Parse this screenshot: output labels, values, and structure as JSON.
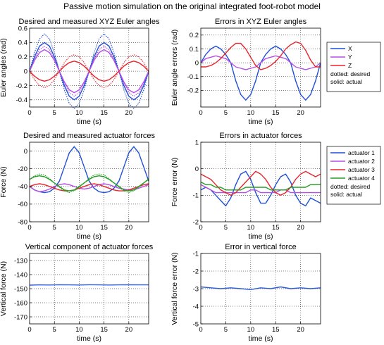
{
  "figure_title": "Passive motion simulation on the original integrated foot-robot model",
  "colors": {
    "X": "#1f4fd8",
    "Y": "#b44fe8",
    "Z": "#e8242c",
    "actuator4": "#23a023",
    "vertical": "#2b5cd6"
  },
  "legend_euler": {
    "entries": [
      {
        "label": "X",
        "color": "#1f4fd8"
      },
      {
        "label": "Y",
        "color": "#b44fe8"
      },
      {
        "label": "Z",
        "color": "#e8242c"
      }
    ],
    "note1": "dotted: desired",
    "note2": "solid: actual"
  },
  "legend_forces": {
    "entries": [
      {
        "label": "actuator 1",
        "color": "#1f4fd8"
      },
      {
        "label": "actuator 2",
        "color": "#b44fe8"
      },
      {
        "label": "actuator 3",
        "color": "#e8242c"
      },
      {
        "label": "actuator 4",
        "color": "#23a023"
      }
    ],
    "note1": "dotted: desired",
    "note2": "solid: actual"
  },
  "chart_data": [
    {
      "type": "line",
      "title": "Desired and measured XYZ Euler angles",
      "xlabel": "time (s)",
      "ylabel": "Euler angles (rad)",
      "xlim": [
        0,
        24
      ],
      "ylim": [
        -0.5,
        0.6
      ],
      "xticks": [
        0,
        5,
        10,
        15,
        20
      ],
      "yticks": [
        -0.4,
        -0.2,
        0,
        0.2,
        0.4,
        0.6
      ],
      "grid": true,
      "x": [
        0,
        1,
        2,
        3,
        4,
        5,
        6,
        7,
        8,
        9,
        10,
        11,
        12,
        13,
        14,
        15,
        16,
        17,
        18,
        19,
        20,
        21,
        22,
        23,
        24
      ],
      "series": [
        {
          "name": "X",
          "style": "solid",
          "color": "#1f4fd8",
          "values": [
            0,
            0.2,
            0.35,
            0.4,
            0.35,
            0.2,
            0,
            -0.2,
            -0.35,
            -0.4,
            -0.35,
            -0.2,
            0,
            0.2,
            0.35,
            0.4,
            0.35,
            0.2,
            0,
            -0.2,
            -0.35,
            -0.4,
            -0.35,
            -0.2,
            0
          ]
        },
        {
          "name": "X",
          "style": "dotted",
          "color": "#1f4fd8",
          "values": [
            0,
            0.26,
            0.45,
            0.52,
            0.45,
            0.26,
            0,
            -0.26,
            -0.45,
            -0.52,
            -0.45,
            -0.26,
            0,
            0.26,
            0.45,
            0.52,
            0.45,
            0.26,
            0,
            -0.26,
            -0.45,
            -0.52,
            -0.45,
            -0.26,
            0
          ]
        },
        {
          "name": "Y",
          "style": "solid",
          "color": "#b44fe8",
          "values": [
            0,
            0.15,
            0.26,
            0.3,
            0.26,
            0.15,
            0,
            -0.15,
            -0.26,
            -0.3,
            -0.26,
            -0.15,
            0,
            0.15,
            0.26,
            0.3,
            0.26,
            0.15,
            0,
            -0.15,
            -0.26,
            -0.3,
            -0.26,
            -0.15,
            0
          ]
        },
        {
          "name": "Y",
          "style": "dotted",
          "color": "#b44fe8",
          "values": [
            0,
            0.17,
            0.3,
            0.35,
            0.3,
            0.17,
            0,
            -0.17,
            -0.3,
            -0.35,
            -0.3,
            -0.17,
            0,
            0.17,
            0.3,
            0.35,
            0.3,
            0.17,
            0,
            -0.17,
            -0.3,
            -0.35,
            -0.3,
            -0.17,
            0
          ]
        },
        {
          "name": "Z",
          "style": "solid",
          "color": "#e8242c",
          "values": [
            0,
            -0.07,
            -0.12,
            -0.14,
            -0.12,
            -0.07,
            0,
            0.07,
            0.12,
            0.14,
            0.12,
            0.07,
            0,
            -0.07,
            -0.12,
            -0.14,
            -0.12,
            -0.07,
            0,
            0.07,
            0.12,
            0.14,
            0.12,
            0.07,
            0
          ]
        },
        {
          "name": "Z",
          "style": "dotted",
          "color": "#e8242c",
          "values": [
            0,
            -0.12,
            -0.2,
            -0.23,
            -0.2,
            -0.12,
            0,
            0.12,
            0.2,
            0.23,
            0.2,
            0.12,
            0,
            -0.12,
            -0.2,
            -0.23,
            -0.2,
            -0.12,
            0,
            0.12,
            0.2,
            0.23,
            0.2,
            0.12,
            0
          ]
        }
      ]
    },
    {
      "type": "line",
      "title": "Errors in XYZ Euler angles",
      "xlabel": "time (s)",
      "ylabel": "Euler angle errors (rad)",
      "xlim": [
        0,
        24
      ],
      "ylim": [
        -0.32,
        0.25
      ],
      "xticks": [
        0,
        5,
        10,
        15,
        20
      ],
      "yticks": [
        -0.2,
        -0.1,
        0,
        0.1,
        0.2
      ],
      "grid": true,
      "x": [
        0,
        1,
        2,
        3,
        4,
        5,
        6,
        7,
        8,
        9,
        10,
        11,
        12,
        13,
        14,
        15,
        16,
        17,
        18,
        19,
        20,
        21,
        22,
        23,
        24
      ],
      "series": [
        {
          "name": "X",
          "color": "#1f4fd8",
          "values": [
            0,
            0.06,
            0.1,
            0.12,
            0.1,
            0.06,
            0,
            -0.13,
            -0.23,
            -0.27,
            -0.23,
            -0.13,
            0,
            0.06,
            0.1,
            0.12,
            0.1,
            0.06,
            0,
            -0.13,
            -0.23,
            -0.27,
            -0.23,
            -0.13,
            0
          ]
        },
        {
          "name": "Y",
          "color": "#b44fe8",
          "values": [
            0,
            0.03,
            0.04,
            0.05,
            0.04,
            0.03,
            0,
            -0.03,
            -0.04,
            -0.05,
            -0.04,
            -0.03,
            0,
            0.03,
            0.04,
            0.05,
            0.04,
            0.03,
            0,
            -0.03,
            -0.04,
            -0.05,
            -0.04,
            -0.03,
            0
          ]
        },
        {
          "name": "Z",
          "color": "#e8242c",
          "values": [
            -0.03,
            -0.03,
            -0.02,
            0.0,
            0.03,
            0.07,
            0.11,
            0.14,
            0.14,
            0.1,
            0.04,
            -0.02,
            -0.05,
            -0.04,
            -0.02,
            0.01,
            0.05,
            0.1,
            0.13,
            0.15,
            0.14,
            0.09,
            0.02,
            -0.03,
            -0.03
          ]
        }
      ]
    },
    {
      "type": "line",
      "title": "Desired and measured actuator forces",
      "xlabel": "time (s)",
      "ylabel": "Force (N)",
      "xlim": [
        0,
        24
      ],
      "ylim": [
        -80,
        10
      ],
      "xticks": [
        0,
        5,
        10,
        15,
        20
      ],
      "yticks": [
        -80,
        -60,
        -40,
        -20,
        0
      ],
      "grid": true,
      "x": [
        0,
        1,
        2,
        3,
        4,
        5,
        6,
        7,
        8,
        9,
        10,
        11,
        12,
        13,
        14,
        15,
        16,
        17,
        18,
        19,
        20,
        21,
        22,
        23,
        24
      ],
      "series": [
        {
          "name": "actuator 1",
          "style": "solid",
          "color": "#1f4fd8",
          "values": [
            -40,
            -44,
            -46,
            -47,
            -46,
            -42,
            -34,
            -18,
            -2,
            5,
            -2,
            -18,
            -34,
            -42,
            -46,
            -47,
            -46,
            -42,
            -34,
            -18,
            -2,
            5,
            -2,
            -18,
            -34
          ]
        },
        {
          "name": "actuator 2",
          "style": "solid",
          "color": "#b44fe8",
          "values": [
            -40,
            -44,
            -46,
            -45,
            -43,
            -40,
            -38,
            -37,
            -38,
            -40,
            -42,
            -43,
            -42,
            -40,
            -38,
            -37,
            -38,
            -40,
            -42,
            -43,
            -44,
            -44,
            -42,
            -40,
            -38
          ]
        },
        {
          "name": "actuator 3",
          "style": "solid",
          "color": "#e8242c",
          "values": [
            -40,
            -38,
            -37,
            -38,
            -40,
            -42,
            -44,
            -45,
            -45,
            -44,
            -42,
            -40,
            -38,
            -37,
            -38,
            -40,
            -42,
            -44,
            -45,
            -45,
            -44,
            -42,
            -40,
            -38,
            -37
          ]
        },
        {
          "name": "actuator 4",
          "style": "solid",
          "color": "#23a023",
          "values": [
            -32,
            -29,
            -28,
            -29,
            -32,
            -36,
            -40,
            -44,
            -45,
            -44,
            -40,
            -36,
            -32,
            -29,
            -28,
            -29,
            -32,
            -36,
            -40,
            -44,
            -45,
            -44,
            -40,
            -36,
            -32
          ]
        },
        {
          "name": "actuator 4",
          "style": "dotted",
          "color": "#23a023",
          "values": [
            -32,
            -28,
            -26,
            -27,
            -31,
            -36,
            -41,
            -45,
            -47,
            -45,
            -41,
            -36,
            -31,
            -27,
            -26,
            -27,
            -31,
            -36,
            -41,
            -45,
            -47,
            -45,
            -41,
            -36,
            -31
          ]
        }
      ]
    },
    {
      "type": "line",
      "title": "Errors in actuator forces",
      "xlabel": "time (s)",
      "ylabel": "Force error (N)",
      "xlim": [
        0,
        24
      ],
      "ylim": [
        -2,
        1
      ],
      "xticks": [
        0,
        5,
        10,
        15,
        20
      ],
      "yticks": [
        -2,
        -1,
        0,
        1
      ],
      "grid": true,
      "x": [
        0,
        1,
        2,
        3,
        4,
        5,
        6,
        7,
        8,
        9,
        10,
        11,
        12,
        13,
        14,
        15,
        16,
        17,
        18,
        19,
        20,
        21,
        22,
        23,
        24
      ],
      "series": [
        {
          "name": "actuator 1",
          "color": "#1f4fd8",
          "values": [
            -0.8,
            -0.7,
            -0.8,
            -1.0,
            -1.2,
            -1.4,
            -1.1,
            -0.6,
            -0.2,
            -0.1,
            -0.4,
            -0.9,
            -1.3,
            -1.3,
            -1.0,
            -0.6,
            -0.3,
            -0.2,
            -0.5,
            -1.0,
            -1.3,
            -1.4,
            -1.1,
            -1.2,
            -1.3
          ]
        },
        {
          "name": "actuator 2",
          "color": "#b44fe8",
          "values": [
            -0.6,
            -0.7,
            -0.8,
            -0.9,
            -0.9,
            -0.9,
            -0.9,
            -0.9,
            -0.9,
            -0.9,
            -0.8,
            -0.8,
            -0.9,
            -0.9,
            -0.9,
            -0.9,
            -0.8,
            -0.8,
            -0.9,
            -0.9,
            -0.9,
            -0.9,
            -0.9,
            -0.9,
            -0.9
          ]
        },
        {
          "name": "actuator 3",
          "color": "#e8242c",
          "values": [
            -0.2,
            -0.3,
            -0.4,
            -0.6,
            -0.8,
            -0.9,
            -1.0,
            -0.9,
            -0.7,
            -0.5,
            -0.3,
            -0.1,
            -0.2,
            -0.4,
            -0.7,
            -0.9,
            -1.0,
            -0.9,
            -0.7,
            -0.4,
            -0.2,
            -0.1,
            -0.2,
            -0.3,
            -0.2
          ]
        },
        {
          "name": "actuator 4",
          "color": "#23a023",
          "values": [
            -0.5,
            -0.6,
            -0.6,
            -0.7,
            -0.7,
            -0.8,
            -0.8,
            -0.8,
            -0.8,
            -0.7,
            -0.7,
            -0.7,
            -0.7,
            -0.7,
            -0.8,
            -0.8,
            -0.8,
            -0.8,
            -0.7,
            -0.7,
            -0.7,
            -0.7,
            -0.6,
            -0.6,
            -0.6
          ]
        }
      ]
    },
    {
      "type": "line",
      "title": "Vertical component of actuator forces",
      "xlabel": "time (s)",
      "ylabel": "Vertical force (N)",
      "xlim": [
        0,
        24
      ],
      "ylim": [
        -175,
        -125
      ],
      "xticks": [
        0,
        5,
        10,
        15,
        20
      ],
      "yticks": [
        -170,
        -160,
        -150,
        -140,
        -130
      ],
      "grid": true,
      "x": [
        0,
        2,
        4,
        6,
        8,
        10,
        12,
        14,
        16,
        18,
        20,
        22,
        24
      ],
      "series": [
        {
          "name": "",
          "color": "#2b5cd6",
          "values": [
            -147.5,
            -147.3,
            -147.4,
            -147.2,
            -147.3,
            -147.4,
            -147.2,
            -147.3,
            -147.4,
            -147.3,
            -147.2,
            -147.3,
            -147.3
          ]
        }
      ]
    },
    {
      "type": "line",
      "title": "Error in vertical force",
      "xlabel": "time (s)",
      "ylabel": "Vertical force error (N)",
      "xlim": [
        0,
        24
      ],
      "ylim": [
        -5,
        -1
      ],
      "xticks": [
        0,
        5,
        10,
        15,
        20
      ],
      "yticks": [
        -5,
        -4,
        -3,
        -2,
        -1
      ],
      "grid": true,
      "x": [
        0,
        2,
        4,
        6,
        8,
        10,
        12,
        14,
        16,
        18,
        20,
        22,
        24
      ],
      "series": [
        {
          "name": "",
          "color": "#2b5cd6",
          "values": [
            -2.9,
            -2.95,
            -3.0,
            -2.95,
            -3.0,
            -3.05,
            -2.95,
            -3.0,
            -2.9,
            -3.0,
            -2.95,
            -3.0,
            -2.95
          ]
        }
      ]
    }
  ]
}
